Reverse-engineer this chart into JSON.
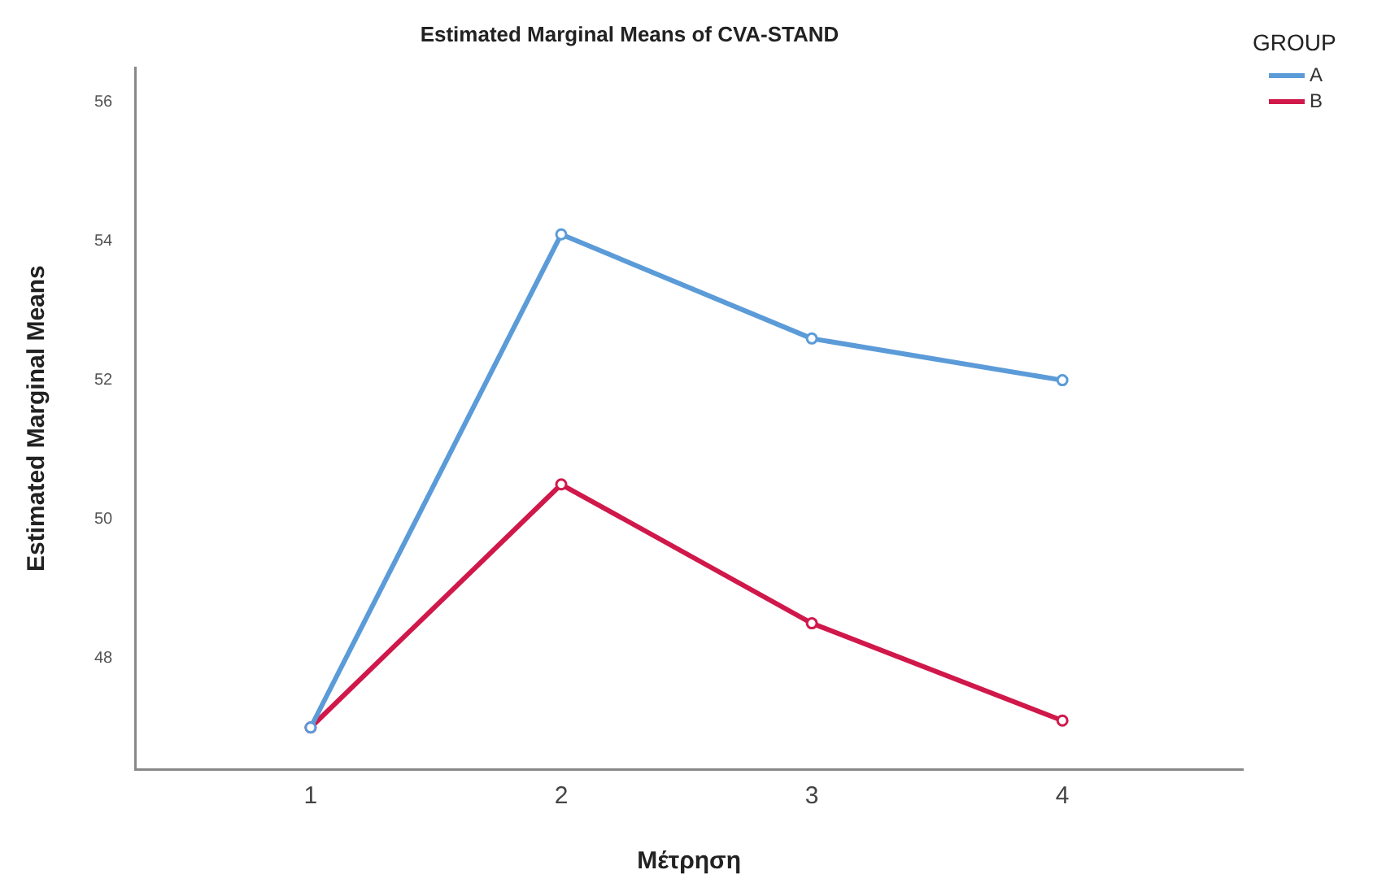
{
  "chart_data": {
    "type": "line",
    "title": "Estimated Marginal Means of CVA-STAND",
    "xlabel": "Μέτρηση",
    "ylabel": "Estimated Marginal Means",
    "legend_title": "GROUP",
    "categories": [
      "1",
      "2",
      "3",
      "4"
    ],
    "series": [
      {
        "name": "A",
        "color": "#5b9bd8",
        "values": [
          47.0,
          54.1,
          52.6,
          52.0
        ]
      },
      {
        "name": "B",
        "color": "#d0184a",
        "values": [
          47.0,
          50.5,
          48.5,
          47.1
        ]
      }
    ],
    "ylim": [
      46.4,
      56.5
    ],
    "yticks": [
      48,
      50,
      52,
      54,
      56
    ],
    "grid": false,
    "legend": "top right",
    "marker": "circle",
    "line_style": "solid"
  }
}
